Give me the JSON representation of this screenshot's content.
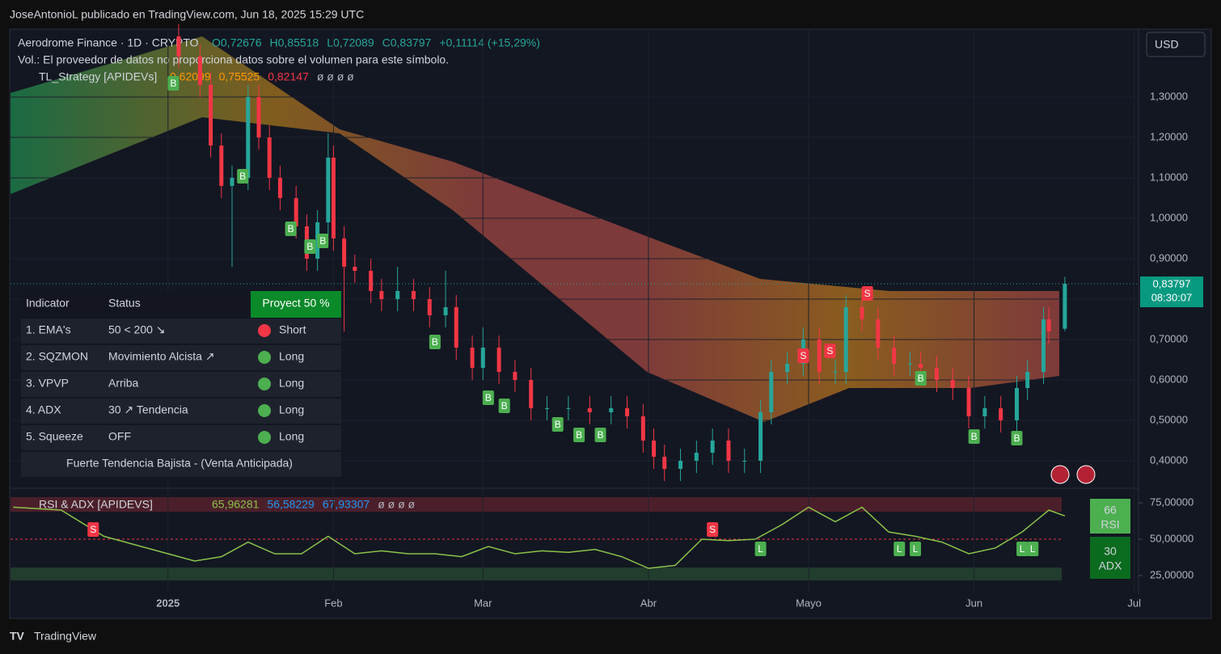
{
  "header": {
    "attribution": "JoseAntonioL publicado en TradingView.com, Jun 18, 2025 15:29 UTC"
  },
  "legend": {
    "symbol": "Aerodrome Finance · 1D · CRYPTO",
    "ohlc": [
      "O0,72676",
      "H0,85518",
      "L0,72089",
      "C0,83797",
      "+0,11114 (+15,29%)"
    ],
    "volume_note": "Vol.: El proveedor de datos no proporciona datos sobre el volumen para este símbolo.",
    "strategy": "TL_Strategy [APIDEVs]",
    "strategy_values": [
      "0,62099",
      "0,75525",
      "0,82147",
      "ø ø ø ø"
    ]
  },
  "currency": "USD",
  "price_tag": {
    "price": "0,83797",
    "countdown": "08:30:07"
  },
  "table": {
    "header": [
      "Indicator",
      "Status",
      "Proyect 50 %"
    ],
    "rows": [
      [
        "1. EMA's",
        "50 < 200 ↘",
        "Short"
      ],
      [
        "2. SQZMON",
        "Movimiento Alcista ↗",
        "Long"
      ],
      [
        "3. VPVP",
        "Arriba",
        "Long"
      ],
      [
        "4. ADX",
        "30 ↗ Tendencia",
        "Long"
      ],
      [
        "5. Squeeze",
        "OFF",
        "Long"
      ]
    ],
    "footer": "Fuerte Tendencia Bajista - (Venta Anticipada)"
  },
  "rsi_legend": {
    "name": "RSI & ADX [APIDEVS]",
    "values": [
      "65,96281",
      "56,58229",
      "67,93307",
      "ø ø ø ø"
    ]
  },
  "rsi_badge": {
    "value": "66",
    "name": "RSI"
  },
  "adx_badge": {
    "value": "30",
    "name": "ADX"
  },
  "footer": {
    "brand": "TradingView"
  },
  "chart_data": {
    "type": "candlestick",
    "up_color": "#26a69a",
    "down_color": "#f23645",
    "grid": true,
    "x": [
      2,
      6,
      8,
      10,
      12,
      15,
      17,
      19,
      21,
      24,
      26,
      28,
      30,
      31,
      33,
      35,
      38,
      40,
      43,
      46,
      49,
      52,
      54,
      57,
      59,
      62,
      65,
      68,
      71,
      75,
      79,
      83,
      86,
      89,
      91,
      93,
      96,
      99,
      102,
      105,
      108,
      111,
      113,
      116,
      119,
      122,
      125,
      127,
      130,
      133,
      136,
      139,
      141,
      144,
      147,
      150,
      153,
      156,
      159,
      161,
      164,
      165,
      168
    ],
    "open": [
      1.45,
      1.4,
      1.33,
      1.18,
      1.08,
      1.1,
      1.3,
      1.2,
      1.1,
      1.05,
      0.98,
      0.9,
      0.99,
      1.15,
      0.95,
      0.88,
      0.87,
      0.82,
      0.8,
      0.82,
      0.8,
      0.76,
      0.78,
      0.68,
      0.63,
      0.68,
      0.62,
      0.6,
      0.53,
      0.53,
      0.53,
      0.52,
      0.53,
      0.51,
      0.45,
      0.41,
      0.38,
      0.4,
      0.42,
      0.45,
      0.4,
      0.4,
      0.52,
      0.62,
      0.64,
      0.7,
      0.62,
      0.62,
      0.78,
      0.75,
      0.68,
      0.64,
      0.64,
      0.63,
      0.6,
      0.58,
      0.51,
      0.53,
      0.5,
      0.58,
      0.62,
      0.75,
      0.72676
    ],
    "high": [
      1.48,
      1.43,
      1.36,
      1.21,
      1.13,
      1.33,
      1.33,
      1.23,
      1.13,
      1.08,
      1.01,
      1.02,
      1.21,
      1.18,
      0.98,
      0.91,
      0.9,
      0.85,
      0.88,
      0.85,
      0.83,
      0.87,
      0.81,
      0.71,
      0.73,
      0.71,
      0.65,
      0.63,
      0.56,
      0.56,
      0.56,
      0.56,
      0.56,
      0.54,
      0.48,
      0.44,
      0.43,
      0.45,
      0.48,
      0.48,
      0.43,
      0.55,
      0.65,
      0.67,
      0.73,
      0.73,
      0.65,
      0.81,
      0.81,
      0.78,
      0.71,
      0.67,
      0.67,
      0.66,
      0.63,
      0.61,
      0.56,
      0.56,
      0.61,
      0.65,
      0.78,
      0.78,
      0.85518
    ],
    "low": [
      1.37,
      1.3,
      1.15,
      1.05,
      0.88,
      1.07,
      1.17,
      1.07,
      1.02,
      0.95,
      0.87,
      0.87,
      0.96,
      0.92,
      0.72,
      0.84,
      0.79,
      0.77,
      0.77,
      0.77,
      0.73,
      0.73,
      0.65,
      0.6,
      0.6,
      0.59,
      0.57,
      0.5,
      0.5,
      0.5,
      0.49,
      0.49,
      0.48,
      0.42,
      0.38,
      0.35,
      0.35,
      0.37,
      0.39,
      0.37,
      0.37,
      0.37,
      0.49,
      0.59,
      0.61,
      0.59,
      0.59,
      0.59,
      0.72,
      0.65,
      0.61,
      0.61,
      0.6,
      0.57,
      0.55,
      0.48,
      0.48,
      0.47,
      0.47,
      0.55,
      0.59,
      0.69,
      0.72089
    ],
    "close": [
      1.4,
      1.33,
      1.18,
      1.08,
      1.1,
      1.3,
      1.2,
      1.1,
      1.05,
      0.98,
      0.9,
      0.99,
      1.15,
      0.95,
      0.88,
      0.87,
      0.82,
      0.8,
      0.82,
      0.8,
      0.76,
      0.78,
      0.68,
      0.63,
      0.68,
      0.62,
      0.6,
      0.53,
      0.53,
      0.53,
      0.52,
      0.53,
      0.51,
      0.45,
      0.41,
      0.38,
      0.4,
      0.42,
      0.45,
      0.4,
      0.4,
      0.52,
      0.62,
      0.64,
      0.7,
      0.62,
      0.62,
      0.78,
      0.75,
      0.68,
      0.64,
      0.64,
      0.63,
      0.6,
      0.58,
      0.51,
      0.53,
      0.5,
      0.58,
      0.62,
      0.75,
      0.72,
      0.83797
    ],
    "xlim": [
      -29.5,
      181.8
    ],
    "ylim": [
      0.334,
      1.47
    ],
    "xticks": [
      {
        "value": 0,
        "label": "2025"
      },
      {
        "value": 31,
        "label": "Feb"
      },
      {
        "value": 59,
        "label": "Mar"
      },
      {
        "value": 90,
        "label": "Abr"
      },
      {
        "value": 120,
        "label": "Mayo"
      },
      {
        "value": 151,
        "label": "Jun"
      },
      {
        "value": 181,
        "label": "Jul"
      }
    ],
    "yticks": [
      {
        "value": 0.4,
        "label": "0,40000"
      },
      {
        "value": 0.5,
        "label": "0,50000"
      },
      {
        "value": 0.6,
        "label": "0,60000"
      },
      {
        "value": 0.7,
        "label": "0,70000"
      },
      {
        "value": 0.8,
        "label": "0,80000"
      },
      {
        "value": 0.9,
        "label": "0,90000"
      },
      {
        "value": 1.0,
        "label": "1,00000"
      },
      {
        "value": 1.1,
        "label": "1,10000"
      },
      {
        "value": 1.2,
        "label": "1,20000"
      },
      {
        "value": 1.3,
        "label": "1,30000"
      }
    ],
    "signals": {
      "labels": [
        "B",
        "B",
        "B",
        "B",
        "B",
        "B",
        "B",
        "B",
        "B",
        "B",
        "B",
        "B",
        "B",
        "B",
        "S",
        "S",
        "S"
      ],
      "x": [
        1,
        14,
        23,
        26.6,
        29,
        50,
        60,
        63,
        73,
        77,
        81,
        141,
        151,
        159,
        131,
        119,
        124
      ],
      "y": [
        1.334,
        1.104,
        0.974,
        0.93,
        0.944,
        0.694,
        0.556,
        0.536,
        0.49,
        0.464,
        0.464,
        0.604,
        0.46,
        0.456,
        0.814,
        0.66,
        0.672
      ]
    },
    "rsi": {
      "color": "#8bc34a",
      "x": [
        -29,
        -20,
        -12,
        -5,
        0,
        5,
        10,
        15,
        20,
        25,
        30,
        35,
        40,
        45,
        50,
        55,
        60,
        65,
        70,
        75,
        80,
        85,
        90,
        95,
        100,
        105,
        110,
        115,
        120,
        125,
        130,
        135,
        140,
        145,
        150,
        155,
        160,
        165,
        168
      ],
      "values": [
        72,
        70,
        52,
        45,
        40,
        35,
        38,
        48,
        40,
        40,
        52,
        40,
        42,
        40,
        40,
        38,
        45,
        40,
        42,
        41,
        43,
        38,
        30,
        32,
        50,
        49,
        50,
        60,
        72,
        62,
        72,
        55,
        52,
        48,
        40,
        44,
        55,
        70,
        66
      ],
      "ylim": [
        20,
        85
      ],
      "yticks": [
        {
          "value": 25,
          "label": "25,00000"
        },
        {
          "value": 50,
          "label": "50,00000"
        },
        {
          "value": 75,
          "label": "75,00000"
        }
      ],
      "signals": {
        "labels": [
          "S",
          "S",
          "L",
          "L",
          "L",
          "L",
          "L"
        ],
        "x": [
          -14,
          102,
          111,
          137,
          140,
          160,
          162
        ],
        "y": [
          56.7,
          56.7,
          43.3,
          43.3,
          43.3,
          43.3,
          43.3
        ]
      }
    }
  }
}
